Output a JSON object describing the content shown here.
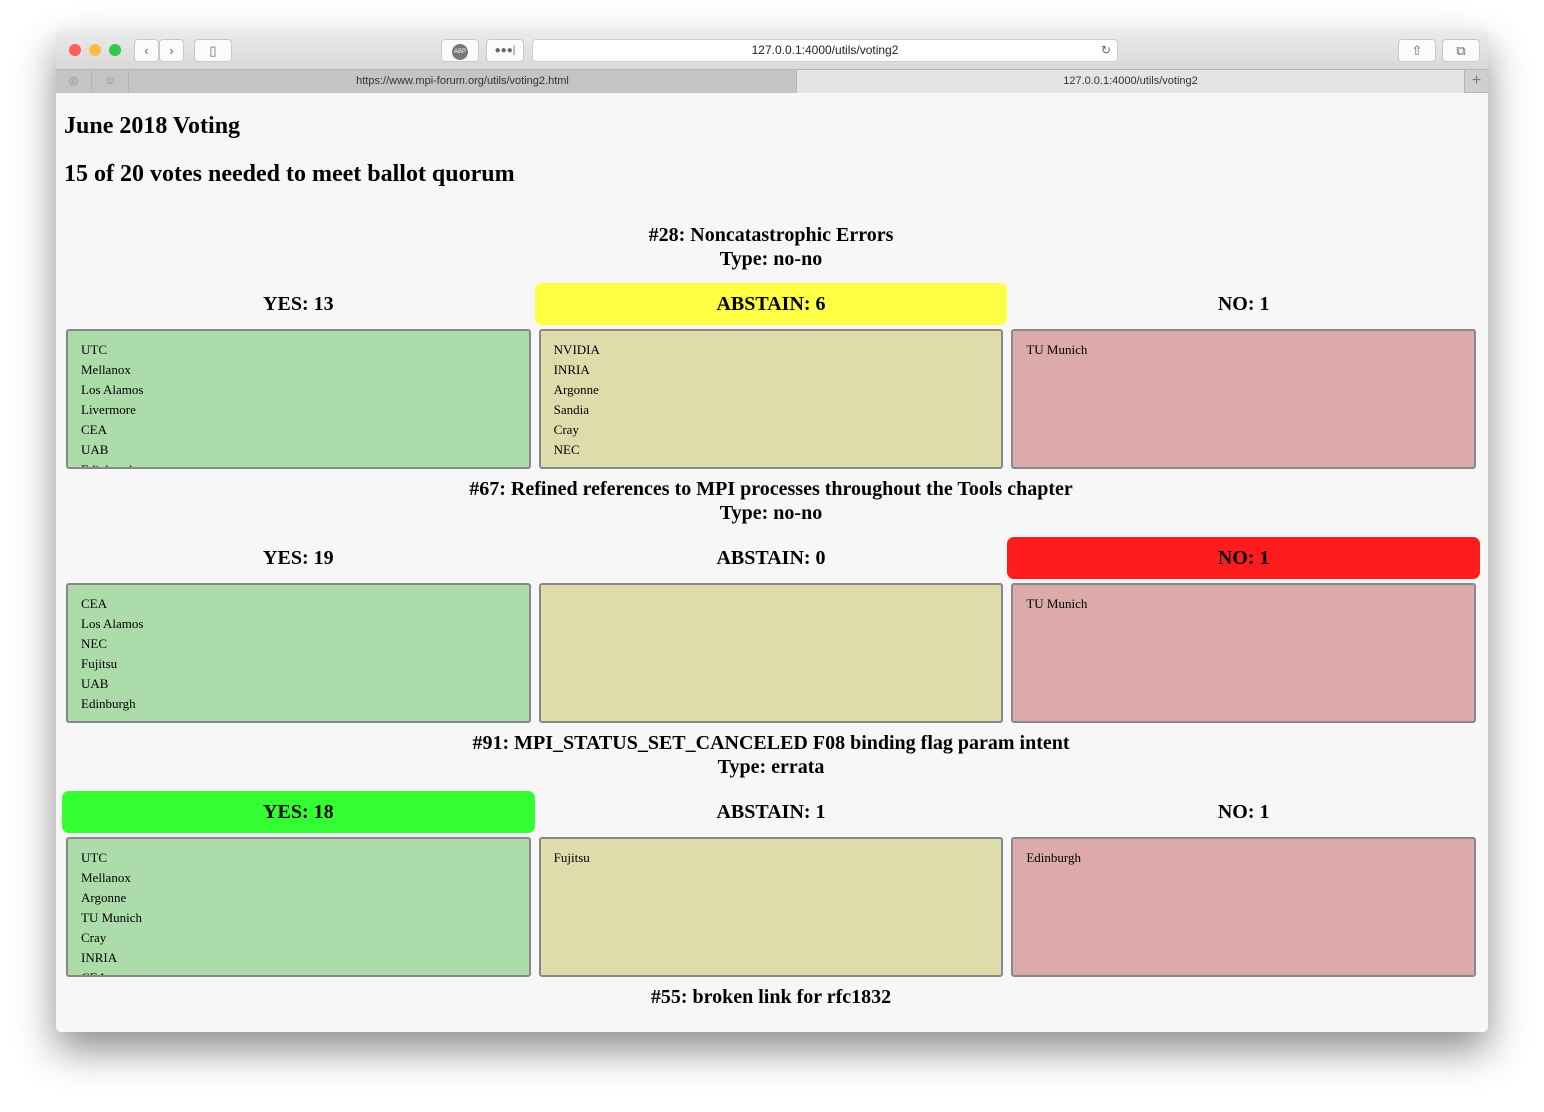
{
  "browser": {
    "address": "127.0.0.1:4000/utils/voting2",
    "tabs": [
      {
        "label": "https://www.mpi-forum.org/utils/voting2.html",
        "active": false
      },
      {
        "label": "127.0.0.1:4000/utils/voting2",
        "active": true
      }
    ],
    "icons": [
      "close",
      "minimize",
      "zoom",
      "back",
      "forward",
      "sidebar",
      "adblock",
      "extensions",
      "reload",
      "share",
      "tabs-overview",
      "github",
      "ghost",
      "new-tab"
    ]
  },
  "page": {
    "title": "June 2018 Voting",
    "quorum": "15 of 20 votes needed to meet ballot quorum",
    "proposals": [
      {
        "title": "#28: Noncatastrophic Errors",
        "type": "Type: no-no",
        "highlight": "abstain",
        "yes": {
          "label": "YES: 13",
          "items": [
            "UTC",
            "Mellanox",
            "Los Alamos",
            "Livermore",
            "CEA",
            "UAB",
            "Edinburgh"
          ]
        },
        "abstain": {
          "label": "ABSTAIN: 6",
          "items": [
            "NVIDIA",
            "INRIA",
            "Argonne",
            "Sandia",
            "Cray",
            "NEC"
          ]
        },
        "no": {
          "label": "NO: 1",
          "items": [
            "TU Munich"
          ]
        }
      },
      {
        "title": "#67: Refined references to MPI processes throughout the Tools chapter",
        "type": "Type: no-no",
        "highlight": "no",
        "yes": {
          "label": "YES: 19",
          "items": [
            "CEA",
            "Los Alamos",
            "NEC",
            "Fujitsu",
            "UAB",
            "Edinburgh"
          ]
        },
        "abstain": {
          "label": "ABSTAIN: 0",
          "items": []
        },
        "no": {
          "label": "NO: 1",
          "items": [
            "TU Munich"
          ]
        }
      },
      {
        "title": "#91: MPI_STATUS_SET_CANCELED F08 binding flag param intent",
        "type": "Type: errata",
        "highlight": "yes",
        "yes": {
          "label": "YES: 18",
          "items": [
            "UTC",
            "Mellanox",
            "Argonne",
            "TU Munich",
            "Cray",
            "INRIA",
            "CEA"
          ]
        },
        "abstain": {
          "label": "ABSTAIN: 1",
          "items": [
            "Fujitsu"
          ]
        },
        "no": {
          "label": "NO: 1",
          "items": [
            "Edinburgh"
          ]
        }
      },
      {
        "title": "#55: broken link for rfc1832"
      }
    ]
  },
  "colors": {
    "yes_highlight": "#33ff33",
    "abstain_highlight": "#ffff44",
    "no_highlight": "#ff1c1c",
    "yes_box": "#acdcaa",
    "abstain_box": "#dedcab",
    "no_box": "#dcaaaa"
  }
}
